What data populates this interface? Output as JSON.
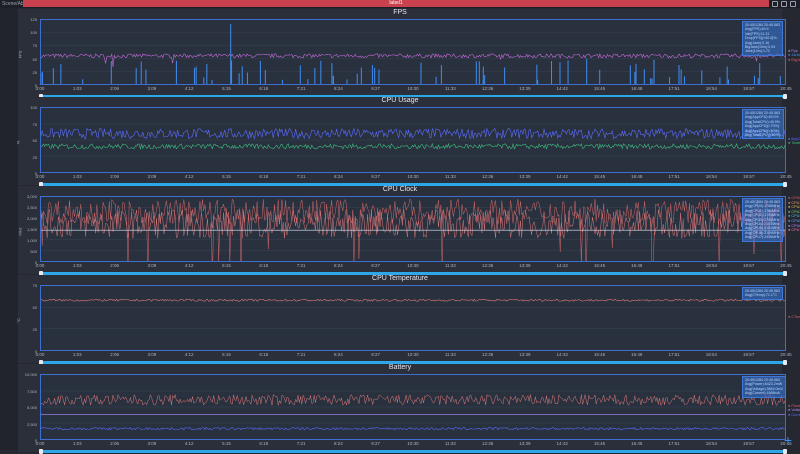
{
  "app": {
    "label": "Scene/Ab",
    "window_title": "label1",
    "accent": "#c9414f"
  },
  "time_ticks": [
    "0:00",
    "1:03",
    "2:06",
    "3:09",
    "4:12",
    "5:15",
    "6:18",
    "7:21",
    "8:24",
    "9:27",
    "10:30",
    "11:33",
    "12:36",
    "13:39",
    "14:42",
    "15:45",
    "16:48",
    "17:51",
    "18:54",
    "19:57",
    "20:45"
  ],
  "panels": [
    {
      "id": "fps",
      "title": "FPS",
      "ylabel": "FPS",
      "yticks": [
        "125",
        "100",
        "75",
        "50",
        "25",
        "0"
      ],
      "legend": [
        {
          "label": "Fps",
          "color": "#b48cff"
        },
        {
          "label": "Jank(x10)",
          "color": "#3f8df0"
        },
        {
          "label": "BigJank(x10)",
          "color": "#e05a6a"
        }
      ],
      "info": [
        "20:45/1284 20:45.563",
        "Avg(FPS):49.9",
        "Var(FPS):11.31",
        "Drop(FPS)[>50.0]%:",
        "Avg(Jank):0.16",
        "BigJank(10m):0.04",
        "Jank(10m):1.72"
      ]
    },
    {
      "id": "cpu_usage",
      "title": "CPU Usage",
      "ylabel": "%",
      "yticks": [
        "100",
        "75",
        "50",
        "25",
        "0"
      ],
      "legend": [
        {
          "label": "AppCPU",
          "color": "#5b6cff"
        },
        {
          "label": "TotalCPU",
          "color": "#3fbf7f"
        }
      ],
      "info": [
        "20:45/1284 20:45.563",
        "Avg(AppCPU):45.0%",
        "Avg(TotalCPU):49.9%",
        "Avg(AppCPU)[<70%]:",
        "Avg(AppCPU)[<60%]:",
        "Avg(TotalCPU)[<80%]:"
      ]
    },
    {
      "id": "cpu_clock",
      "title": "CPU Clock",
      "ylabel": "MHz",
      "yticks": [
        "3,000",
        "2,500",
        "2,000",
        "1,500",
        "1,000",
        "500",
        "0"
      ],
      "legend": [
        {
          "label": "CPU0",
          "color": "#e05a6a"
        },
        {
          "label": "CPU1",
          "color": "#ff9955"
        },
        {
          "label": "CPU2",
          "color": "#e0c24a"
        },
        {
          "label": "CPU3",
          "color": "#7fd06a"
        },
        {
          "label": "CPU4",
          "color": "#4ac0c8"
        },
        {
          "label": "CPU5",
          "color": "#6aa0ff"
        },
        {
          "label": "CPU6",
          "color": "#b48cff"
        },
        {
          "label": "CPU7",
          "color": "#ff7fbf"
        }
      ],
      "info": [
        "20:45/1284 20:45.563",
        "Avg(CPU0):1788MHz",
        "Avg(CPU1):1786MHz",
        "Avg(CPU2):1791MHz",
        "Avg(CPU3):1790MHz",
        "Avg(CPU4):2104MHz",
        "Avg(CPU5):2103MHz",
        "Avg(CPU6):2109MHz",
        "Avg(CPU7):2416MHz"
      ]
    },
    {
      "id": "cpu_temp",
      "title": "CPU Temperature",
      "ylabel": "°C",
      "yticks": [
        "75",
        "50",
        "25",
        "0"
      ],
      "legend": [
        {
          "label": "CTemp",
          "color": "#e05a6a"
        }
      ],
      "info": [
        "20:45/1284 20:45.563",
        "Avg(CTemp):71.1°C"
      ]
    },
    {
      "id": "battery",
      "title": "Battery",
      "ylabel": "",
      "yticks": [
        "10,000",
        "7,500",
        "5,000",
        "2,500",
        "0"
      ],
      "legend": [
        {
          "label": "Power",
          "color": "#e05a6a"
        },
        {
          "label": "Voltage",
          "color": "#b48cff"
        },
        {
          "label": "Current",
          "color": "#5b6cff"
        }
      ],
      "info": [
        "20:45/1284 20:45.563",
        "Avg(Power):6423.2mW",
        "Avg(Voltage):3849.0mV",
        "Avg(Current):1668mA"
      ]
    }
  ]
}
